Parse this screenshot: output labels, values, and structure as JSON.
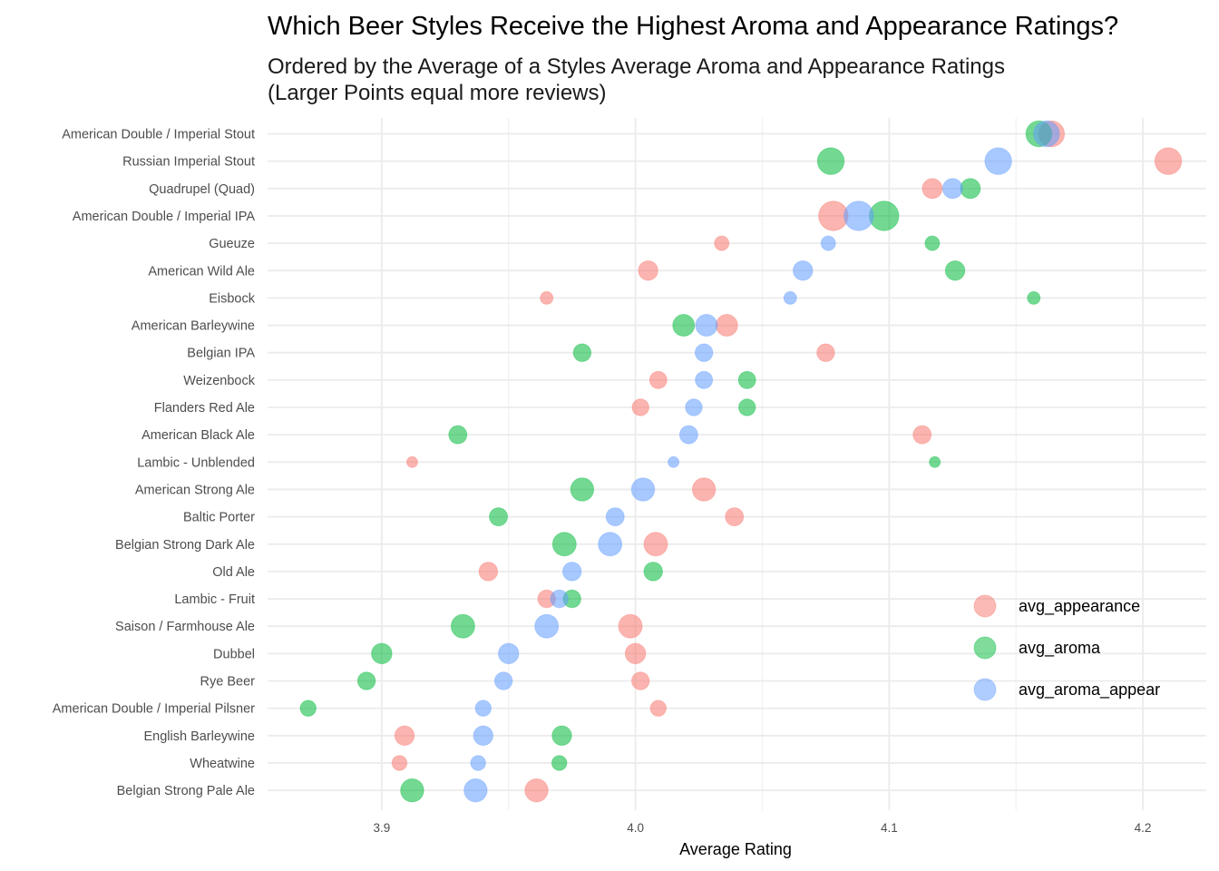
{
  "chart_data": {
    "type": "scatter",
    "title": "Which Beer Styles Receive the Highest Aroma and Appearance Ratings?",
    "subtitle_lines": [
      "Ordered by the Average of a Styles Average Aroma and Appearance Ratings",
      "(Larger Points equal more reviews)"
    ],
    "xlabel": "Average Rating",
    "ylabel": "",
    "xlim": [
      3.855,
      4.225
    ],
    "xticks": [
      "3.9",
      "4.0",
      "4.1",
      "4.2"
    ],
    "xtick_values": [
      3.9,
      4.0,
      4.1,
      4.2
    ],
    "grid": true,
    "legend_position": "right",
    "categories": [
      "American Double / Imperial Stout",
      "Russian Imperial Stout",
      "Quadrupel (Quad)",
      "American Double / Imperial IPA",
      "Gueuze",
      "American Wild Ale",
      "Eisbock",
      "American Barleywine",
      "Belgian IPA",
      "Weizenbock",
      "Flanders Red Ale",
      "American Black Ale",
      "Lambic - Unblended",
      "American Strong Ale",
      "Baltic Porter",
      "Belgian Strong Dark Ale",
      "Old Ale",
      "Lambic - Fruit",
      "Saison / Farmhouse Ale",
      "Dubbel",
      "Rye Beer",
      "American Double / Imperial Pilsner",
      "English Barleywine",
      "Wheatwine",
      "Belgian Strong Pale Ale"
    ],
    "review_size": [
      4.1,
      4.3,
      2.8,
      4.9,
      1.6,
      2.7,
      1.2,
      3.2,
      2.3,
      2.2,
      2.1,
      2.4,
      0.8,
      3.5,
      2.4,
      3.6,
      2.5,
      2.3,
      3.6,
      2.9,
      2.3,
      1.9,
      2.7,
      1.7,
      3.5
    ],
    "series": [
      {
        "name": "avg_appearance",
        "color": "#F8766D",
        "values": [
          4.164,
          4.21,
          4.117,
          4.078,
          4.034,
          4.005,
          3.965,
          4.036,
          4.075,
          4.009,
          4.002,
          4.113,
          3.912,
          4.027,
          4.039,
          4.008,
          3.942,
          3.965,
          3.998,
          4.0,
          4.002,
          4.009,
          3.909,
          3.907,
          3.961
        ]
      },
      {
        "name": "avg_aroma",
        "color": "#00BA38",
        "values": [
          4.159,
          4.077,
          4.132,
          4.098,
          4.117,
          4.126,
          4.157,
          4.019,
          3.979,
          4.044,
          4.044,
          3.93,
          4.118,
          3.979,
          3.946,
          3.972,
          4.007,
          3.975,
          3.932,
          3.9,
          3.894,
          3.871,
          3.971,
          3.97,
          3.912
        ]
      },
      {
        "name": "avg_aroma_appear",
        "color": "#619CFF",
        "values": [
          4.162,
          4.143,
          4.125,
          4.088,
          4.076,
          4.066,
          4.061,
          4.028,
          4.027,
          4.027,
          4.023,
          4.021,
          4.015,
          4.003,
          3.992,
          3.99,
          3.975,
          3.97,
          3.965,
          3.95,
          3.948,
          3.94,
          3.94,
          3.938,
          3.937
        ]
      }
    ]
  }
}
